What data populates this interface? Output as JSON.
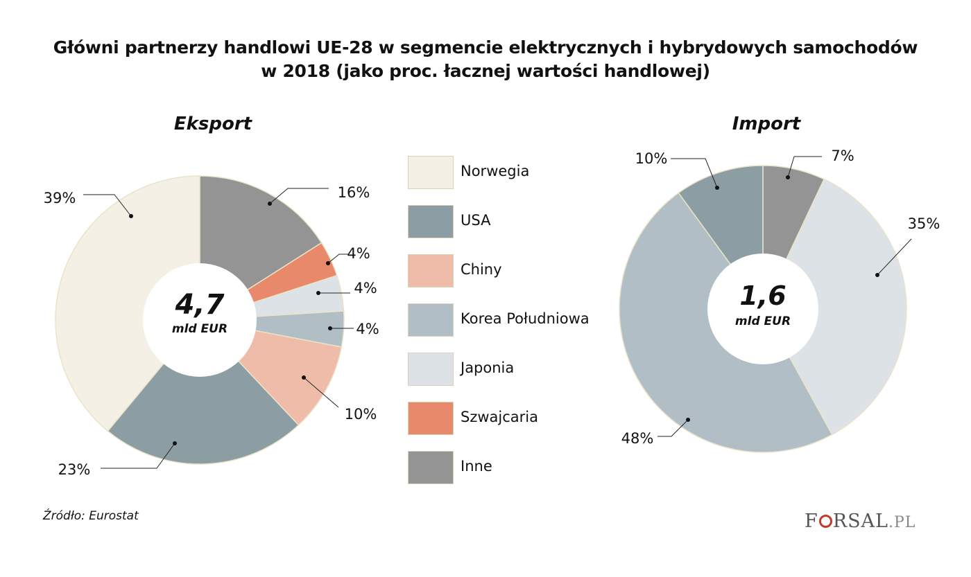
{
  "title": {
    "line1": "Główni partnerzy handlowi UE-28 w segmencie elektrycznych i hybrydowych samochodów",
    "line2": "w 2018 (jako proc. łacznej wartości handlowej)"
  },
  "legend": [
    {
      "label": "Norwegia",
      "color": "#f5f0e6"
    },
    {
      "label": "USA",
      "color": "#8c9ea3"
    },
    {
      "label": "Chiny",
      "color": "#efbca9"
    },
    {
      "label": "Korea Południowa",
      "color": "#b1bec5"
    },
    {
      "label": "Japonia",
      "color": "#dde2e6"
    },
    {
      "label": "Szwajcaria",
      "color": "#e8896b"
    },
    {
      "label": "Inne",
      "color": "#949494"
    }
  ],
  "chart_data": [
    {
      "type": "pie",
      "title": "Eksport",
      "center_value": "4,7",
      "center_unit": "mld EUR",
      "slices": [
        {
          "category": "Inne",
          "value": 16,
          "label": "16%"
        },
        {
          "category": "Szwajcaria",
          "value": 4,
          "label": "4%"
        },
        {
          "category": "Japonia",
          "value": 4,
          "label": "4%"
        },
        {
          "category": "Korea Południowa",
          "value": 4,
          "label": "4%"
        },
        {
          "category": "Chiny",
          "value": 10,
          "label": "10%"
        },
        {
          "category": "USA",
          "value": 23,
          "label": "23%"
        },
        {
          "category": "Norwegia",
          "value": 39,
          "label": "39%"
        }
      ]
    },
    {
      "type": "pie",
      "title": "Import",
      "center_value": "1,6",
      "center_unit": "mld EUR",
      "slices": [
        {
          "category": "Inne",
          "value": 7,
          "label": "7%"
        },
        {
          "category": "Japonia",
          "value": 35,
          "label": "35%"
        },
        {
          "category": "Korea Południowa",
          "value": 48,
          "label": "48%"
        },
        {
          "category": "USA",
          "value": 10,
          "label": "10%"
        }
      ]
    }
  ],
  "source": "Źródło: Eurostat",
  "logo": {
    "text1": "F",
    "text2": "RSAL",
    "text3": ".PL"
  }
}
